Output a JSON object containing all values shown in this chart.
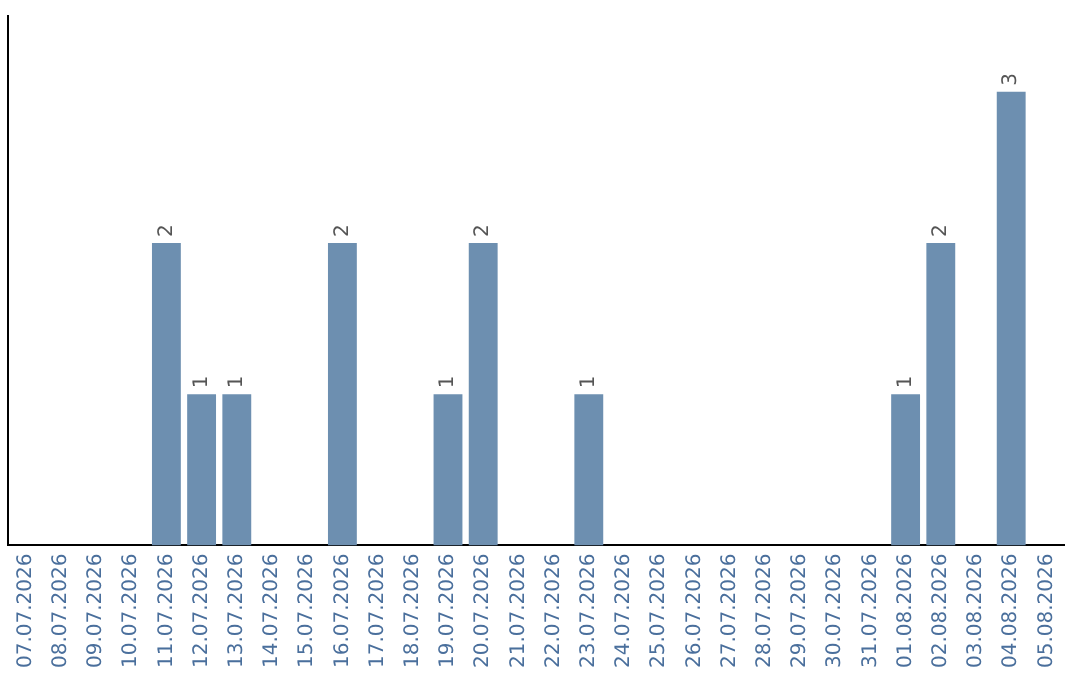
{
  "chart_data": {
    "type": "bar",
    "categories": [
      "07.07.2026",
      "08.07.2026",
      "09.07.2026",
      "10.07.2026",
      "11.07.2026",
      "12.07.2026",
      "13.07.2026",
      "14.07.2026",
      "15.07.2026",
      "16.07.2026",
      "17.07.2026",
      "18.07.2026",
      "19.07.2026",
      "20.07.2026",
      "21.07.2026",
      "22.07.2026",
      "23.07.2026",
      "24.07.2026",
      "25.07.2026",
      "26.07.2026",
      "27.07.2026",
      "28.07.2026",
      "29.07.2026",
      "30.07.2026",
      "31.07.2026",
      "01.08.2026",
      "02.08.2026",
      "03.08.2026",
      "04.08.2026",
      "05.08.2026"
    ],
    "values": [
      0,
      0,
      0,
      0,
      2,
      1,
      1,
      0,
      0,
      2,
      0,
      0,
      1,
      2,
      0,
      0,
      1,
      0,
      0,
      0,
      0,
      0,
      0,
      0,
      0,
      1,
      2,
      0,
      3,
      0
    ],
    "value_labels": [
      null,
      null,
      null,
      null,
      "2",
      "1",
      "1",
      null,
      null,
      "2",
      null,
      null,
      "1",
      "2",
      null,
      null,
      "1",
      null,
      null,
      null,
      null,
      null,
      null,
      null,
      null,
      "1",
      "2",
      null,
      "3",
      null
    ],
    "color": "#6d8fb0",
    "grid": false,
    "legend": false
  }
}
